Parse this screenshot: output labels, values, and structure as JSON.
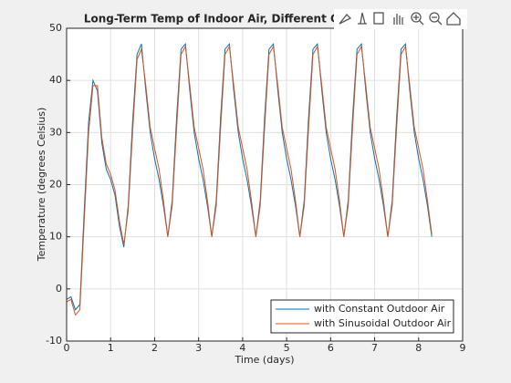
{
  "chart_data": {
    "type": "line",
    "title": "Long-Term Temp of Indoor Air, Different Outdoor Air Temps",
    "xlabel": "Time (days)",
    "ylabel": "Temperature (degrees Celsius)",
    "x": [
      0,
      0.1,
      0.2,
      0.3,
      0.4,
      0.5,
      0.6,
      0.7,
      0.8,
      0.9,
      1,
      1.1,
      1.2,
      1.3,
      1.4,
      1.5,
      1.6,
      1.7,
      1.8,
      1.9,
      2,
      2.1,
      2.2,
      2.3,
      2.4,
      2.5,
      2.6,
      2.7,
      2.8,
      2.9,
      3,
      3.1,
      3.2,
      3.3,
      3.4,
      3.5,
      3.6,
      3.7,
      3.8,
      3.9,
      4,
      4.1,
      4.2,
      4.3,
      4.4,
      4.5,
      4.6,
      4.7,
      4.8,
      4.9,
      5,
      5.1,
      5.2,
      5.3,
      5.4,
      5.5,
      5.6,
      5.7,
      5.8,
      5.9,
      6,
      6.1,
      6.2,
      6.3,
      6.4,
      6.5,
      6.6,
      6.7,
      6.8,
      6.9,
      7,
      7.1,
      7.2,
      7.3,
      7.4,
      7.5,
      7.6,
      7.7,
      7.8,
      7.9,
      8,
      8.1,
      8.2,
      8.3
    ],
    "series": [
      {
        "name": "with Constant Outdoor Air",
        "color": "#0072bd",
        "values": [
          -2,
          -1.5,
          -4,
          -3,
          15,
          32,
          40,
          38,
          28,
          23,
          21,
          18,
          12,
          8,
          16,
          32,
          45,
          47,
          38,
          30,
          25,
          21,
          16,
          10,
          17,
          33,
          46,
          47,
          38,
          30,
          25,
          21,
          16,
          10,
          17,
          33,
          46,
          47,
          38,
          30,
          25,
          21,
          16,
          10,
          17,
          33,
          46,
          47,
          38,
          30,
          25,
          21,
          16,
          10,
          17,
          33,
          46,
          47,
          38,
          30,
          25,
          21,
          16,
          10,
          17,
          33,
          46,
          47,
          38,
          30,
          25,
          21,
          16,
          10,
          17,
          33,
          46,
          47,
          38,
          30,
          25,
          21,
          16,
          10
        ]
      },
      {
        "name": "with Sinusoidal Outdoor Air",
        "color": "#d95319",
        "values": [
          -2.5,
          -2,
          -5,
          -4,
          13,
          30,
          39,
          39,
          29,
          24,
          22,
          19,
          13,
          8.5,
          15,
          30,
          44,
          46,
          39,
          31,
          27,
          23,
          17,
          10,
          16,
          31,
          45,
          46.5,
          39,
          31,
          27,
          23,
          17,
          10,
          16,
          31,
          45,
          46.5,
          39,
          31,
          27,
          23,
          17,
          10,
          16,
          31,
          45,
          46.5,
          39,
          31,
          27,
          23,
          17,
          10,
          16,
          31,
          45,
          46.5,
          39,
          31,
          27,
          23,
          17,
          10,
          16,
          31,
          45,
          46.5,
          39,
          31,
          27,
          23,
          17,
          10,
          16,
          31,
          45,
          46.5,
          39,
          31,
          27,
          23,
          17,
          10.5
        ]
      }
    ],
    "xlim": [
      0,
      9
    ],
    "xticks": [
      0,
      1,
      2,
      3,
      4,
      5,
      6,
      7,
      8,
      9
    ],
    "ylim": [
      -10,
      50
    ],
    "yticks": [
      -10,
      0,
      10,
      20,
      30,
      40,
      50
    ],
    "grid": true,
    "legend": "southeast"
  }
}
